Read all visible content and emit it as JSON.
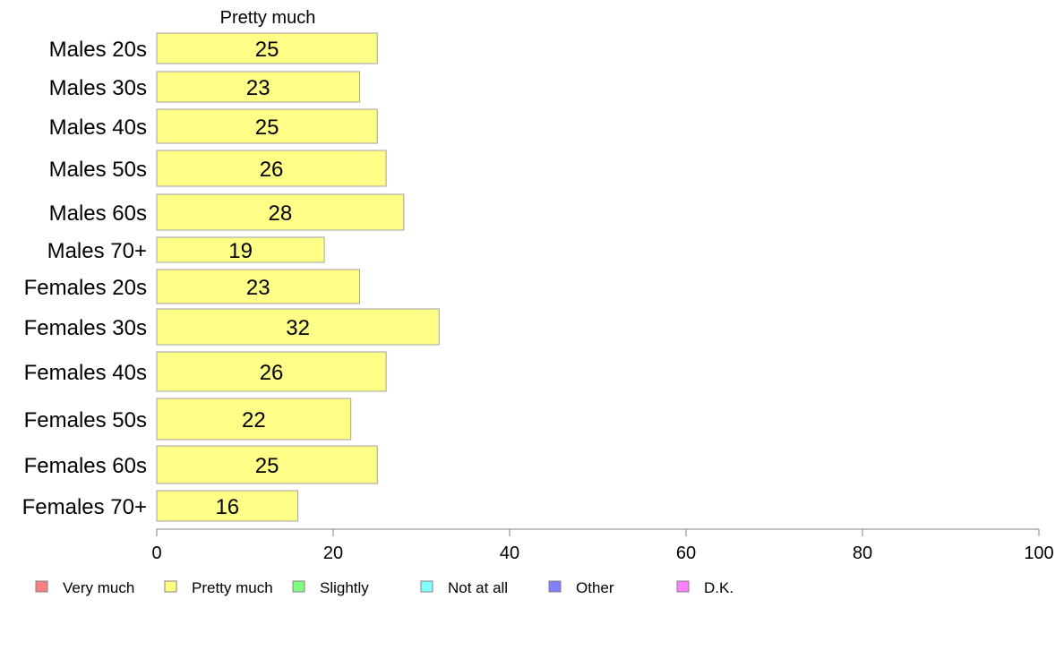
{
  "chart_data": {
    "type": "bar",
    "orientation": "horizontal",
    "stacked": true,
    "title": "",
    "series_title": "Pretty much",
    "categories": [
      "Males 20s",
      "Males 30s",
      "Males 40s",
      "Males 50s",
      "Males 60s",
      "Males 70+",
      "Females 20s",
      "Females 30s",
      "Females 40s",
      "Females 50s",
      "Females 60s",
      "Females 70+"
    ],
    "series": [
      {
        "name": "Pretty much",
        "color": "#ffff88",
        "values": [
          25,
          23,
          25,
          26,
          28,
          19,
          23,
          32,
          26,
          22,
          25,
          16
        ]
      }
    ],
    "xlim": [
      0,
      100
    ],
    "xticks": [
      0,
      20,
      40,
      60,
      80,
      100
    ],
    "grid": false,
    "legend_position": "bottom",
    "legend": [
      {
        "label": "Very much",
        "color": "#ff8080"
      },
      {
        "label": "Pretty much",
        "color": "#ffff80"
      },
      {
        "label": "Slightly",
        "color": "#80ff80"
      },
      {
        "label": "Not at all",
        "color": "#80ffff"
      },
      {
        "label": "Other",
        "color": "#8080ff"
      },
      {
        "label": "D.K.",
        "color": "#ff80ff"
      }
    ]
  }
}
